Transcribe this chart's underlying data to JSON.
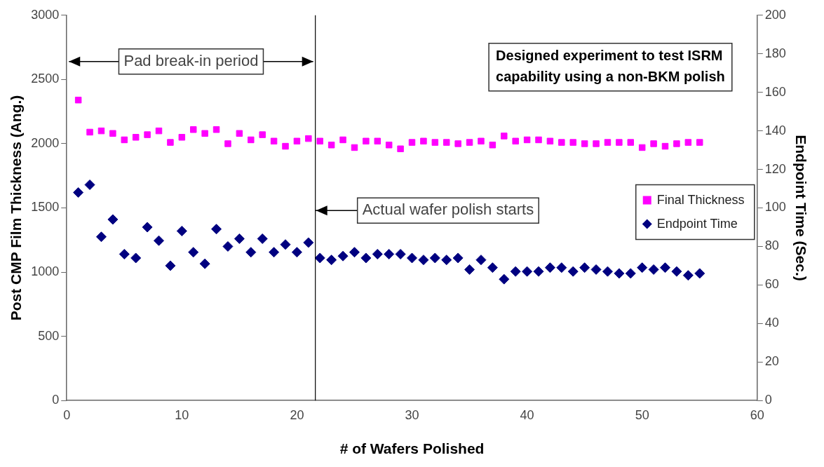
{
  "chart_data": {
    "type": "scatter",
    "xlabel": "# of Wafers Polished",
    "ylabel": "Post CMP Film Thickness (Ang.)",
    "y2label": "Endpoint Time (Sec.)",
    "x": [
      1,
      2,
      3,
      4,
      5,
      6,
      7,
      8,
      9,
      10,
      11,
      12,
      13,
      14,
      15,
      16,
      17,
      18,
      19,
      20,
      21,
      22,
      23,
      24,
      25,
      26,
      27,
      28,
      29,
      30,
      31,
      32,
      33,
      34,
      35,
      36,
      37,
      38,
      39,
      40,
      41,
      42,
      43,
      44,
      45,
      46,
      47,
      48,
      49,
      50,
      51,
      52,
      53,
      54,
      55
    ],
    "series": [
      {
        "name": "Final Thickness",
        "color": "#ff00ff",
        "marker": "square",
        "values": [
          2340,
          2090,
          2100,
          2080,
          2030,
          2050,
          2070,
          2100,
          2010,
          2050,
          2110,
          2080,
          2110,
          2000,
          2080,
          2030,
          2070,
          2020,
          1980,
          2020,
          2040,
          2020,
          1990,
          2030,
          1970,
          2020,
          2020,
          1990,
          1960,
          2010,
          2020,
          2010,
          2010,
          2000,
          2010,
          2020,
          1990,
          2060,
          2020,
          2030,
          2030,
          2020,
          2010,
          2010,
          2000,
          2000,
          2010,
          2010,
          2010,
          1970,
          2000,
          1980,
          2000,
          2010,
          2010
        ]
      },
      {
        "name": "Endpoint Time",
        "color": "#000080",
        "marker": "diamond",
        "axis": "y2",
        "values": [
          108,
          112,
          85,
          94,
          76,
          74,
          90,
          83,
          70,
          88,
          77,
          71,
          89,
          80,
          84,
          77,
          84,
          77,
          81,
          77,
          82,
          74,
          73,
          75,
          77,
          74,
          76,
          76,
          76,
          74,
          73,
          74,
          73,
          74,
          68,
          73,
          69,
          63,
          67,
          67,
          67,
          69,
          69,
          67,
          69,
          68,
          67,
          66,
          66,
          69,
          68,
          69,
          67,
          65,
          66
        ]
      }
    ],
    "xlim": [
      0,
      60
    ],
    "xticks": [
      0,
      10,
      20,
      30,
      40,
      50,
      60
    ],
    "ylim": [
      0,
      3000
    ],
    "yticks": [
      0,
      500,
      1000,
      1500,
      2000,
      2500,
      3000
    ],
    "y2lim": [
      0,
      200
    ],
    "y2ticks": [
      0,
      20,
      40,
      60,
      80,
      100,
      120,
      140,
      160,
      180,
      200
    ],
    "ref_lines": [
      {
        "axis": "x",
        "value": 21.6,
        "color": "#000000"
      }
    ],
    "annotations": [
      "Pad break-in period",
      {
        "text": "Actual wafer polish starts",
        "x": 21.6,
        "y": 1480
      },
      "Designed experiment to test ISRM capability using a non-BKM polish"
    ],
    "legend": "right",
    "grid": false
  }
}
